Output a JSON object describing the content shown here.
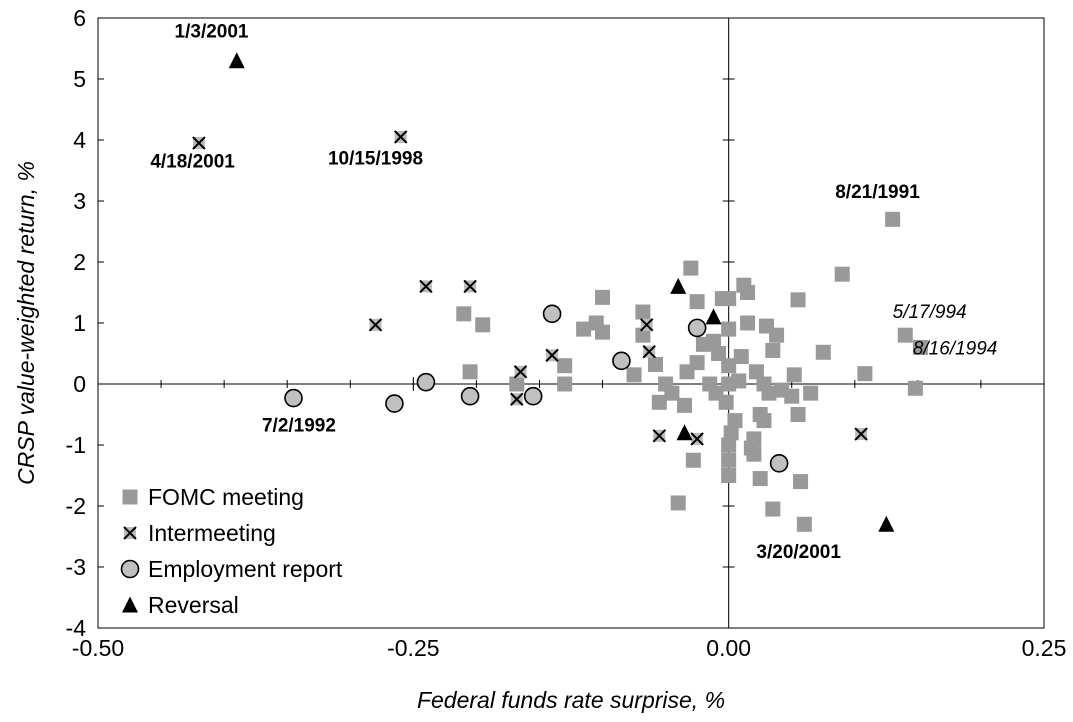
{
  "chart_data": {
    "type": "scatter",
    "xlabel": "Federal funds rate surprise, %",
    "ylabel": "CRSP value-weighted return, %",
    "xlim": [
      -0.5,
      0.25
    ],
    "ylim": [
      -4,
      6
    ],
    "x_ticks": [
      -0.5,
      -0.25,
      0.0,
      0.25
    ],
    "x_tick_labels": [
      "-0.50",
      "-0.25",
      "0.00",
      "0.25"
    ],
    "y_ticks": [
      -4,
      -3,
      -2,
      -1,
      0,
      1,
      2,
      3,
      4,
      5,
      6
    ],
    "y_tick_labels": [
      "-4",
      "-3",
      "-2",
      "-1",
      "0",
      "1",
      "2",
      "3",
      "4",
      "5",
      "6"
    ],
    "grid": false,
    "legend_position": "bottom-left",
    "colors": {
      "fomc": "#999999",
      "intermeeting": "#000000",
      "employment_fill": "#c0c0c0",
      "reversal": "#000000"
    },
    "series": [
      {
        "name": "FOMC meeting",
        "marker": "square",
        "points": [
          [
            -0.21,
            1.15
          ],
          [
            -0.195,
            0.97
          ],
          [
            -0.205,
            0.2
          ],
          [
            -0.168,
            0.0
          ],
          [
            -0.13,
            0.3
          ],
          [
            -0.13,
            0.0
          ],
          [
            -0.115,
            0.9
          ],
          [
            -0.105,
            1.0
          ],
          [
            -0.1,
            0.85
          ],
          [
            -0.1,
            1.42
          ],
          [
            -0.075,
            0.15
          ],
          [
            -0.068,
            0.8
          ],
          [
            -0.068,
            1.18
          ],
          [
            -0.058,
            0.32
          ],
          [
            -0.055,
            -0.3
          ],
          [
            -0.05,
            0.0
          ],
          [
            -0.045,
            -0.15
          ],
          [
            -0.04,
            -1.95
          ],
          [
            -0.035,
            -0.35
          ],
          [
            -0.033,
            0.2
          ],
          [
            -0.03,
            1.9
          ],
          [
            -0.028,
            -1.25
          ],
          [
            -0.025,
            0.35
          ],
          [
            -0.025,
            1.35
          ],
          [
            -0.02,
            0.65
          ],
          [
            -0.015,
            0.0
          ],
          [
            -0.012,
            0.7
          ],
          [
            -0.01,
            -0.15
          ],
          [
            -0.008,
            0.5
          ],
          [
            -0.005,
            1.4
          ],
          [
            -0.002,
            -0.3
          ],
          [
            0.0,
            0.0
          ],
          [
            0.0,
            1.4
          ],
          [
            0.0,
            0.9
          ],
          [
            0.0,
            0.3
          ],
          [
            0.0,
            -1.0
          ],
          [
            0.0,
            -1.25
          ],
          [
            0.0,
            -1.5
          ],
          [
            0.002,
            -0.8
          ],
          [
            0.005,
            -0.6
          ],
          [
            0.008,
            0.05
          ],
          [
            0.01,
            0.45
          ],
          [
            0.012,
            1.62
          ],
          [
            0.015,
            1.5
          ],
          [
            0.015,
            1.0
          ],
          [
            0.018,
            -1.05
          ],
          [
            0.02,
            -1.15
          ],
          [
            0.02,
            -0.9
          ],
          [
            0.022,
            0.2
          ],
          [
            0.025,
            -0.5
          ],
          [
            0.025,
            -1.55
          ],
          [
            0.028,
            -0.6
          ],
          [
            0.028,
            0.0
          ],
          [
            0.03,
            0.95
          ],
          [
            0.032,
            -0.15
          ],
          [
            0.035,
            0.55
          ],
          [
            0.035,
            -2.05
          ],
          [
            0.038,
            0.8
          ],
          [
            0.042,
            -0.1
          ],
          [
            0.05,
            -0.2
          ],
          [
            0.052,
            0.15
          ],
          [
            0.055,
            1.38
          ],
          [
            0.055,
            -0.5
          ],
          [
            0.057,
            -1.6
          ],
          [
            0.06,
            -2.3
          ],
          [
            0.065,
            -0.15
          ],
          [
            0.075,
            0.52
          ],
          [
            0.09,
            1.8
          ],
          [
            0.108,
            0.17
          ],
          [
            0.13,
            2.7
          ],
          [
            0.14,
            0.8
          ],
          [
            0.148,
            -0.07
          ],
          [
            0.152,
            0.6
          ]
        ]
      },
      {
        "name": "Intermeeting",
        "marker": "x-square",
        "points": [
          [
            -0.42,
            3.95
          ],
          [
            -0.26,
            4.05
          ],
          [
            -0.28,
            0.97
          ],
          [
            -0.24,
            1.6
          ],
          [
            -0.205,
            1.6
          ],
          [
            -0.165,
            0.2
          ],
          [
            -0.168,
            -0.25
          ],
          [
            -0.14,
            0.47
          ],
          [
            -0.065,
            0.97
          ],
          [
            -0.063,
            0.53
          ],
          [
            -0.055,
            -0.85
          ],
          [
            -0.025,
            -0.9
          ],
          [
            0.105,
            -0.82
          ]
        ]
      },
      {
        "name": "Employment report",
        "marker": "circle",
        "points": [
          [
            -0.345,
            -0.23
          ],
          [
            -0.265,
            -0.32
          ],
          [
            -0.24,
            0.03
          ],
          [
            -0.205,
            -0.2
          ],
          [
            -0.155,
            -0.2
          ],
          [
            -0.14,
            1.15
          ],
          [
            -0.085,
            0.38
          ],
          [
            -0.025,
            0.92
          ],
          [
            0.04,
            -1.3
          ]
        ]
      },
      {
        "name": "Reversal",
        "marker": "triangle",
        "points": [
          [
            -0.39,
            5.3
          ],
          [
            -0.04,
            1.6
          ],
          [
            -0.035,
            -0.8
          ],
          [
            -0.012,
            1.1
          ],
          [
            0.125,
            -2.3
          ]
        ]
      }
    ],
    "annotations": [
      {
        "text": "1/3/2001",
        "x": -0.41,
        "y": 5.68,
        "style": "bold",
        "anchor": "middle"
      },
      {
        "text": "4/18/2001",
        "x": -0.425,
        "y": 3.55,
        "style": "bold",
        "anchor": "middle"
      },
      {
        "text": "10/15/1998",
        "x": -0.28,
        "y": 3.6,
        "style": "bold",
        "anchor": "middle"
      },
      {
        "text": "8/21/1991",
        "x": 0.118,
        "y": 3.05,
        "style": "bold",
        "anchor": "middle"
      },
      {
        "text": "5/17/994",
        "x": 0.13,
        "y": 1.08,
        "style": "italic",
        "anchor": "start"
      },
      {
        "text": "8/16/1994",
        "x": 0.146,
        "y": 0.48,
        "style": "italic",
        "anchor": "start"
      },
      {
        "text": "7/2/1992",
        "x": -0.37,
        "y": -0.78,
        "style": "bold",
        "anchor": "start"
      },
      {
        "text": "3/20/2001",
        "x": 0.022,
        "y": -2.85,
        "style": "bold",
        "anchor": "start"
      }
    ]
  }
}
